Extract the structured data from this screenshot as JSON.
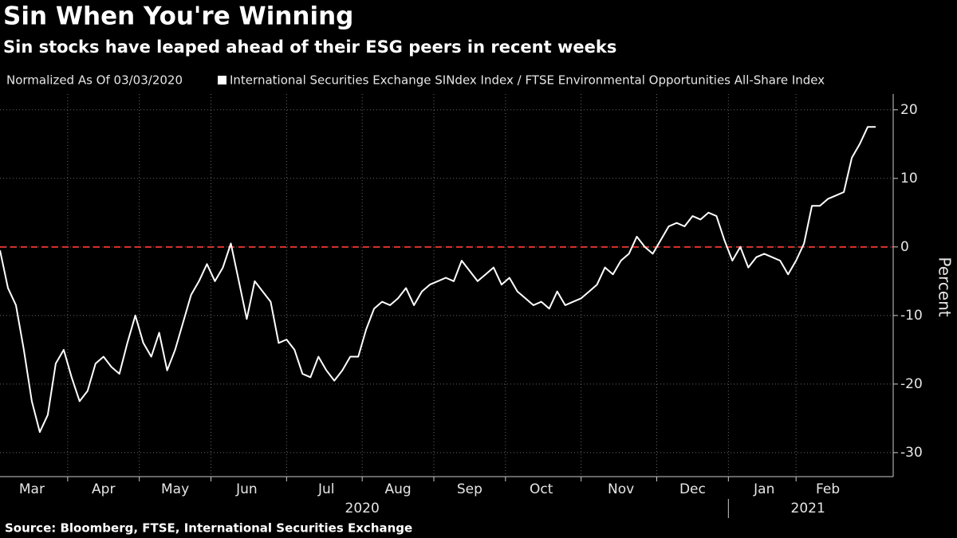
{
  "chart_data": {
    "type": "line",
    "title": "Sin When You're Winning",
    "subtitle": "Sin stocks have leaped ahead of their ESG peers in recent weeks",
    "note": "Normalized As Of 03/03/2020",
    "source": "Source: Bloomberg, FTSE, International Securities Exchange",
    "ylabel": "Percent",
    "categories": [
      null,
      null,
      null,
      null,
      "Mar",
      null,
      null,
      null,
      null,
      null,
      null,
      null,
      null,
      "Apr",
      null,
      null,
      null,
      null,
      null,
      null,
      null,
      null,
      "May",
      null,
      null,
      null,
      null,
      null,
      null,
      null,
      null,
      "Jun",
      null,
      null,
      null,
      null,
      null,
      null,
      null,
      null,
      null,
      "Jul",
      null,
      null,
      null,
      null,
      null,
      null,
      null,
      null,
      "Aug",
      null,
      null,
      null,
      null,
      null,
      null,
      null,
      null,
      "Sep",
      null,
      null,
      null,
      null,
      null,
      null,
      null,
      null,
      "Oct",
      null,
      null,
      null,
      null,
      null,
      null,
      null,
      null,
      null,
      "Nov",
      null,
      null,
      null,
      null,
      null,
      null,
      null,
      null,
      "Dec",
      null,
      null,
      null,
      null,
      null,
      null,
      null,
      null,
      "Jan",
      null,
      null,
      null,
      null,
      null,
      null,
      null,
      "Feb",
      null,
      null,
      null,
      null,
      null,
      null
    ],
    "year_labels": [
      "2020",
      "2021"
    ],
    "series": [
      {
        "name": "International Securities Exchange SINdex Index / FTSE Environmental Opportunities All-Share Index",
        "color": "#ffffff",
        "values": [
          -0.5,
          -6,
          -8.5,
          -15,
          -22.5,
          -27,
          -24.5,
          -17,
          -15,
          -19,
          -22.5,
          -21,
          -17,
          -16,
          -17.5,
          -18.5,
          -14,
          -10,
          -14,
          -16,
          -12.5,
          -18,
          -15,
          -11,
          -7,
          -5,
          -2.5,
          -5,
          -3,
          0.5,
          -5,
          -10.5,
          -5,
          -6.5,
          -8,
          -14,
          -13.5,
          -15,
          -18.5,
          -19,
          -16,
          -18,
          -19.5,
          -18,
          -16,
          -16,
          -12,
          -9,
          -8,
          -8.5,
          -7.5,
          -6,
          -8.5,
          -6.5,
          -5.5,
          -5,
          -4.5,
          -5,
          -2,
          -3.5,
          -5,
          -4,
          -3,
          -5.5,
          -4.5,
          -6.5,
          -7.5,
          -8.5,
          -8,
          -9,
          -6.5,
          -8.5,
          -8,
          -7.5,
          -6.5,
          -5.5,
          -3,
          -4,
          -2,
          -1,
          1.5,
          0,
          -1,
          1,
          3,
          3.5,
          3,
          4.5,
          4,
          5,
          4.5,
          1,
          -2,
          0,
          -3,
          -1.5,
          -1,
          -1.5,
          -2,
          -4,
          -2,
          0.5,
          6,
          6,
          7,
          7.5,
          8,
          13,
          15,
          17.5,
          17.5
        ]
      }
    ],
    "ylim": [
      -33.5,
      22.3
    ],
    "yticks": [
      20,
      10,
      0,
      -10,
      -20,
      -30
    ],
    "grid": true,
    "reference_line": {
      "value": 0,
      "color": "#e0332b"
    }
  }
}
